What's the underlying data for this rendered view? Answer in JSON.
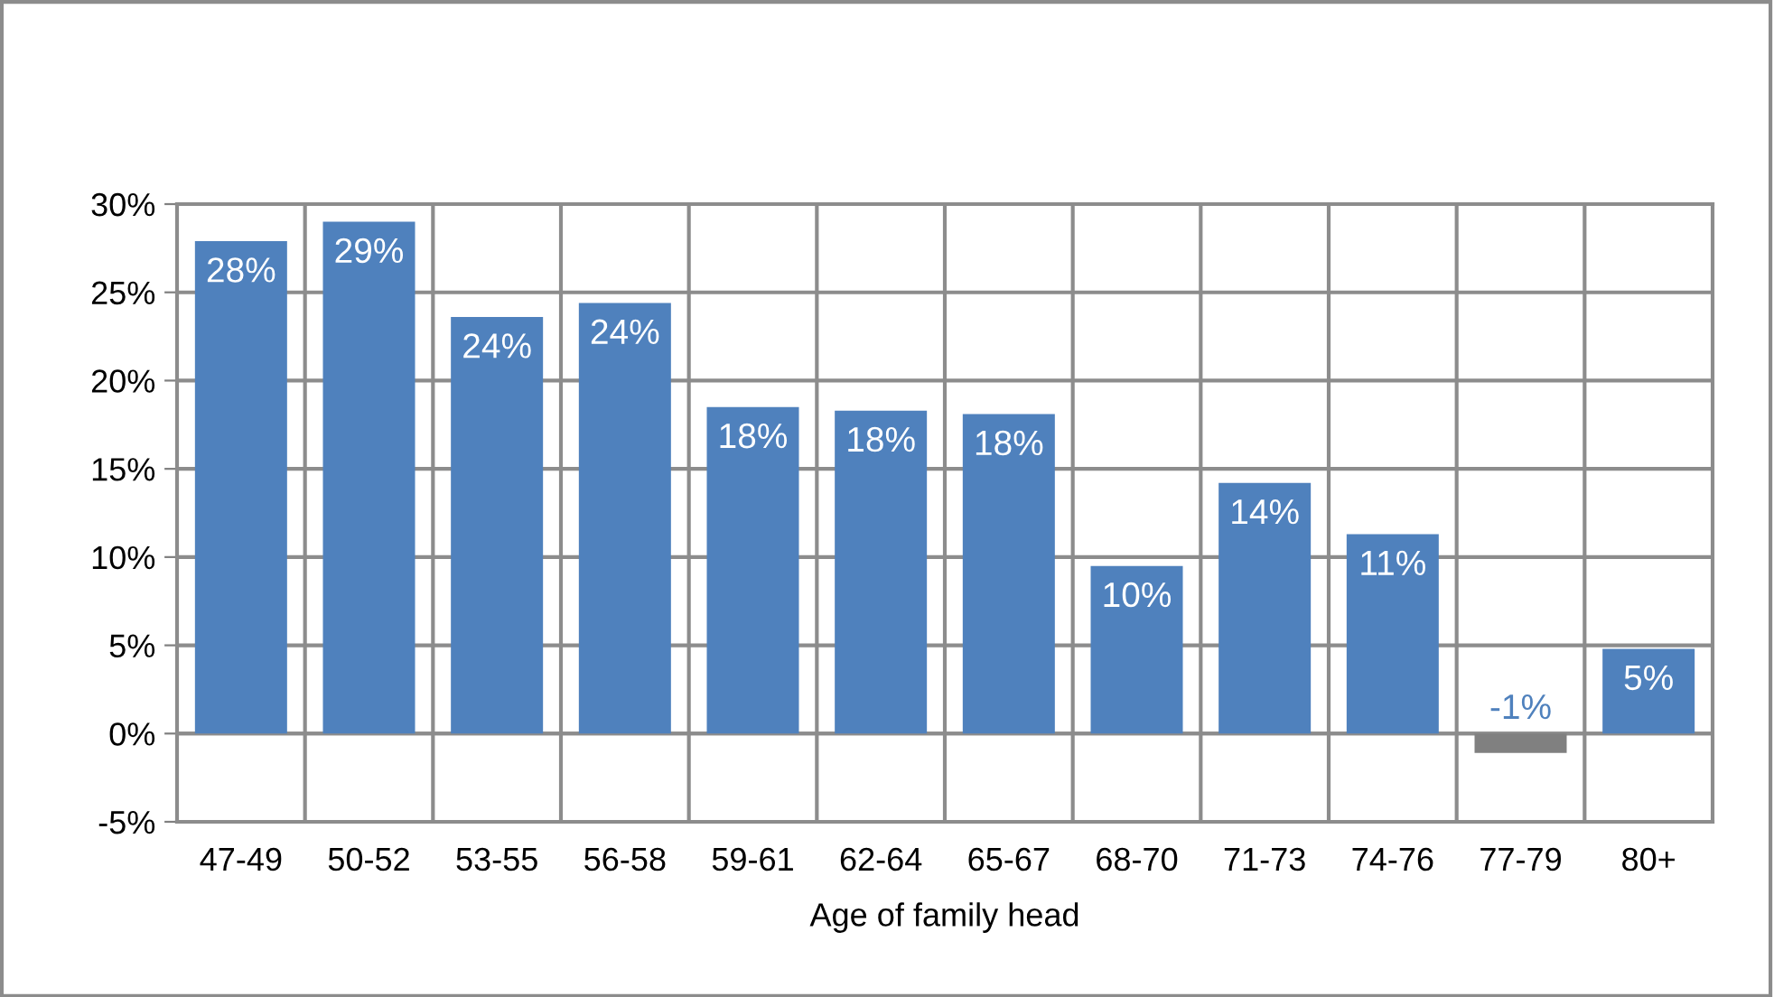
{
  "chart_data": {
    "type": "bar",
    "xlabel": "Age of family head",
    "categories": [
      "47-49",
      "50-52",
      "53-55",
      "56-58",
      "59-61",
      "62-64",
      "65-67",
      "68-70",
      "71-73",
      "74-76",
      "77-79",
      "80+"
    ],
    "values": [
      27.9,
      29.0,
      23.6,
      24.4,
      18.5,
      18.3,
      18.1,
      9.5,
      14.2,
      11.3,
      -1.1,
      4.8
    ],
    "colors": [
      "#4f81bd",
      "#4f81bd",
      "#4f81bd",
      "#4f81bd",
      "#4f81bd",
      "#4f81bd",
      "#4f81bd",
      "#4f81bd",
      "#4f81bd",
      "#4f81bd",
      "#808080",
      "#4f81bd"
    ],
    "value_labels": [
      "28%",
      "29%",
      "24%",
      "24%",
      "18%",
      "18%",
      "18%",
      "10%",
      "14%",
      "11%",
      "-1%",
      "5%"
    ],
    "ylim": [
      -5,
      30
    ],
    "yticks": [
      {
        "value": -5,
        "label": "-5%"
      },
      {
        "value": 0,
        "label": "0%"
      },
      {
        "value": 5,
        "label": "5%"
      },
      {
        "value": 10,
        "label": "10%"
      },
      {
        "value": 15,
        "label": "15%"
      },
      {
        "value": 20,
        "label": "20%"
      },
      {
        "value": 25,
        "label": "25%"
      },
      {
        "value": 30,
        "label": "30%"
      }
    ],
    "grid": true
  }
}
